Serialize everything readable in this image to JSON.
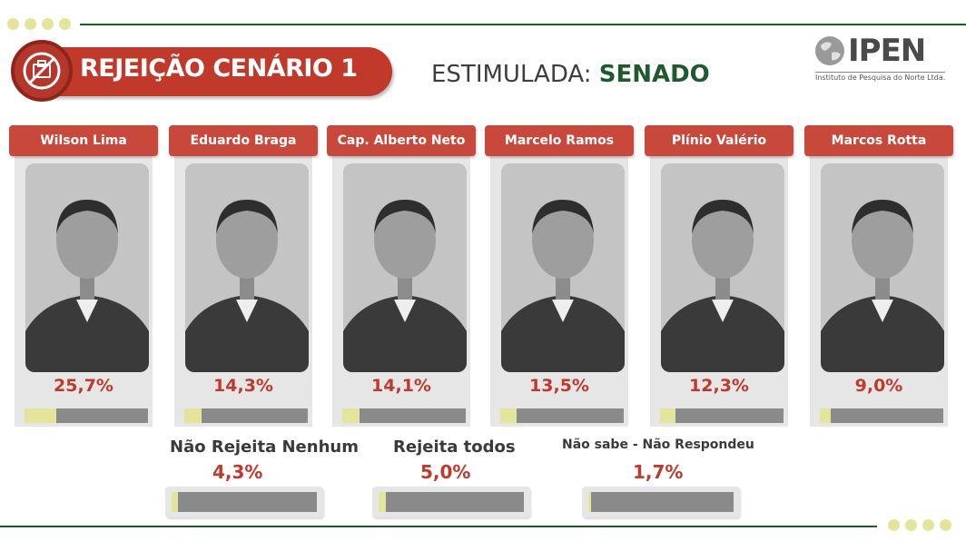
{
  "header": {
    "title": "REJEIÇÃO CENÁRIO 1",
    "subtitle_prefix": "ESTIMULADA: ",
    "subtitle_highlight": "SENADO",
    "logo_text": "IPEN",
    "logo_subtext": "Instituto de Pesquisa do Norte Ltda."
  },
  "colors": {
    "accent_red": "#c0392b",
    "label_red": "#c8493b",
    "dark_green": "#1f5a2c",
    "bar_fill": "#e3e59a",
    "bar_track": "#8a8a8a"
  },
  "chart_data": {
    "type": "bar",
    "title": "REJEIÇÃO CENÁRIO 1",
    "subtitle": "ESTIMULADA: SENADO",
    "unit": "%",
    "ylim": [
      0,
      100
    ],
    "series": [
      {
        "values": [
          25.7,
          14.3,
          14.1,
          13.5,
          12.3,
          9.0
        ],
        "labels": [
          "25,7%",
          "14,3%",
          "14,1%",
          "13,5%",
          "12,3%",
          "9,0%"
        ]
      }
    ],
    "categories": [
      "Wilson Lima",
      "Eduardo Braga",
      "Cap. Alberto Neto",
      "Marcelo Ramos",
      "Plínio Valério",
      "Marcos Rotta"
    ],
    "extras": [
      {
        "label": "Não Rejeita Nenhum",
        "value": 4.3,
        "display": "4,3%"
      },
      {
        "label": "Rejeita todos",
        "value": 5.0,
        "display": "5,0%"
      },
      {
        "label": "Não sabe - Não Respondeu",
        "value": 1.7,
        "display": "1,7%"
      }
    ]
  }
}
